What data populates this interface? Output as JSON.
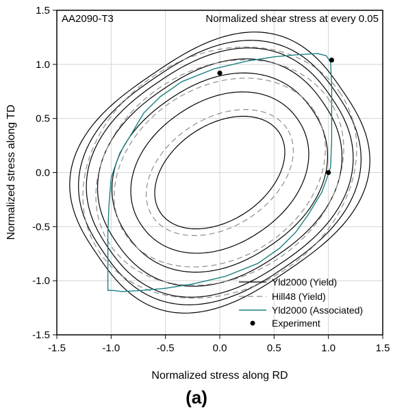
{
  "chart_data": {
    "type": "line",
    "title": "",
    "material_label": "AA2090-T3",
    "note": "Normalized shear stress at every 0.05",
    "panel_label": "(a)",
    "xlabel": "Normalized stress along RD",
    "ylabel": "Normalized stress along TD",
    "xlim": [
      -1.5,
      1.5
    ],
    "ylim": [
      -1.5,
      1.5
    ],
    "xticks": [
      "-1.5",
      "-1.0",
      "-0.5",
      "0.0",
      "0.5",
      "1.0",
      "1.5"
    ],
    "yticks": [
      "-1.5",
      "-1.0",
      "-0.5",
      "0.0",
      "0.5",
      "1.0",
      "1.5"
    ],
    "grid": true,
    "legend_position": "bottom-right",
    "legend": [
      {
        "label": "Yld2000 (Yield)",
        "style": "solid",
        "color": "#000000"
      },
      {
        "label": "Hill48 (Yield)",
        "style": "dashed",
        "color": "#808080"
      },
      {
        "label": "Yld2000 (Associated)",
        "style": "solid",
        "color": "#1a7f7f"
      },
      {
        "label": "Experiment",
        "style": "marker",
        "color": "#000000"
      }
    ],
    "series": [
      {
        "name": "Yld2000 (Yield)",
        "color": "#000000",
        "dash": false,
        "curves": [
          {
            "cx": 0.0,
            "cy": 0.0,
            "ax": 1.36,
            "ay": 1.1,
            "rot": 0.6,
            "n": 2.7
          },
          {
            "cx": 0.0,
            "cy": 0.0,
            "ax": 1.3,
            "ay": 1.06,
            "rot": 0.6,
            "n": 2.5
          },
          {
            "cx": 0.0,
            "cy": 0.0,
            "ax": 1.24,
            "ay": 1.01,
            "rot": 0.6,
            "n": 2.4
          },
          {
            "cx": 0.0,
            "cy": 0.0,
            "ax": 1.15,
            "ay": 0.93,
            "rot": 0.6,
            "n": 2.3
          },
          {
            "cx": 0.0,
            "cy": 0.0,
            "ax": 1.03,
            "ay": 0.82,
            "rot": 0.6,
            "n": 2.2
          },
          {
            "cx": 0.0,
            "cy": 0.0,
            "ax": 0.87,
            "ay": 0.66,
            "rot": 0.6,
            "n": 2.1
          },
          {
            "cx": 0.0,
            "cy": 0.0,
            "ax": 0.66,
            "ay": 0.44,
            "rot": 0.6,
            "n": 2.0
          }
        ]
      },
      {
        "name": "Hill48 (Yield)",
        "color": "#8c8c8c",
        "dash": true,
        "curves": [
          {
            "cx": 0.0,
            "cy": 0.0,
            "ax": 1.33,
            "ay": 1.08,
            "rot": 0.58,
            "n": 2.0
          },
          {
            "cx": 0.0,
            "cy": 0.0,
            "ax": 1.21,
            "ay": 0.96,
            "rot": 0.58,
            "n": 2.0
          },
          {
            "cx": 0.0,
            "cy": 0.0,
            "ax": 1.04,
            "ay": 0.79,
            "rot": 0.58,
            "n": 2.0
          },
          {
            "cx": 0.0,
            "cy": 0.0,
            "ax": 0.74,
            "ay": 0.5,
            "rot": 0.58,
            "n": 2.0
          }
        ]
      },
      {
        "name": "Yld2000 (Associated)",
        "color": "#1a7f7f",
        "dash": false,
        "points": [
          [
            -1.03,
            -1.09
          ],
          [
            -1.03,
            -0.8
          ],
          [
            -1.03,
            -0.55
          ],
          [
            -1.02,
            -0.3
          ],
          [
            -1.0,
            -0.05
          ],
          [
            -0.96,
            0.07
          ],
          [
            -0.92,
            0.18
          ],
          [
            -0.8,
            0.38
          ],
          [
            -0.7,
            0.55
          ],
          [
            -0.55,
            0.7
          ],
          [
            -0.35,
            0.84
          ],
          [
            -0.05,
            0.96
          ],
          [
            0.25,
            1.03
          ],
          [
            0.5,
            1.07
          ],
          [
            0.72,
            1.09
          ],
          [
            0.9,
            1.1
          ],
          [
            0.98,
            1.08
          ],
          [
            1.02,
            1.02
          ],
          [
            1.03,
            0.8
          ],
          [
            1.03,
            0.55
          ],
          [
            1.03,
            0.3
          ],
          [
            1.02,
            0.05
          ],
          [
            0.98,
            -0.07
          ],
          [
            0.94,
            -0.18
          ],
          [
            0.82,
            -0.38
          ],
          [
            0.7,
            -0.55
          ],
          [
            0.55,
            -0.7
          ],
          [
            0.35,
            -0.84
          ],
          [
            0.05,
            -0.96
          ],
          [
            -0.25,
            -1.03
          ],
          [
            -0.5,
            -1.07
          ],
          [
            -0.72,
            -1.09
          ],
          [
            -0.9,
            -1.1
          ],
          [
            -0.98,
            -1.09
          ],
          [
            -1.03,
            -1.09
          ]
        ]
      },
      {
        "name": "Experiment",
        "type": "scatter",
        "color": "#000000",
        "points": [
          [
            0.0,
            0.92
          ],
          [
            1.03,
            1.04
          ],
          [
            1.0,
            0.0
          ]
        ]
      }
    ]
  }
}
